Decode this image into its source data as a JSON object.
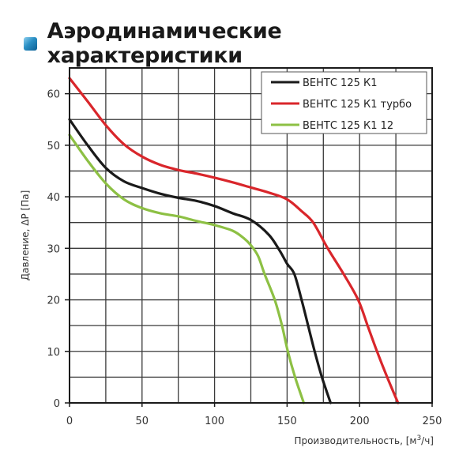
{
  "header": {
    "title": "Аэродинамические характеристики",
    "icon": "blue-square-icon"
  },
  "chart_data": {
    "type": "line",
    "title": "Аэродинамические характеристики",
    "xlabel": "Производительность, [м³/ч]",
    "ylabel": "Давление, ΔP [Па]",
    "xlim": [
      0,
      250
    ],
    "ylim": [
      0,
      65
    ],
    "x_ticks": [
      0,
      50,
      100,
      150,
      200,
      250
    ],
    "y_ticks": [
      0,
      10,
      20,
      30,
      40,
      50,
      60
    ],
    "grid": true,
    "grid_x_step": 25,
    "grid_y_step": 5,
    "legend_position": "upper right",
    "series": [
      {
        "name": "ВЕНТС 125 К1",
        "color": "#1a1a1a",
        "points": [
          [
            0,
            55
          ],
          [
            12.5,
            50
          ],
          [
            25,
            45.6
          ],
          [
            37.5,
            43
          ],
          [
            50,
            41.7
          ],
          [
            62.5,
            40.6
          ],
          [
            75,
            39.8
          ],
          [
            87.5,
            39.2
          ],
          [
            100,
            38.2
          ],
          [
            112.5,
            36.8
          ],
          [
            125,
            35.5
          ],
          [
            137.5,
            32.6
          ],
          [
            145,
            29.5
          ],
          [
            150,
            27
          ],
          [
            155,
            25
          ],
          [
            160,
            20
          ],
          [
            164.5,
            15
          ],
          [
            169,
            10
          ],
          [
            174,
            5
          ],
          [
            180,
            0
          ]
        ]
      },
      {
        "name": "ВЕНТС 125 К1 турбо",
        "color": "#d9262b",
        "points": [
          [
            0,
            63
          ],
          [
            12.5,
            58.5
          ],
          [
            25,
            53.9
          ],
          [
            37.5,
            50.2
          ],
          [
            50,
            47.8
          ],
          [
            62.5,
            46.2
          ],
          [
            75,
            45.2
          ],
          [
            87.5,
            44.5
          ],
          [
            100,
            43.7
          ],
          [
            112.5,
            42.8
          ],
          [
            125,
            41.8
          ],
          [
            137.5,
            40.8
          ],
          [
            150,
            39.5
          ],
          [
            160,
            37.2
          ],
          [
            168,
            35
          ],
          [
            178,
            30
          ],
          [
            189,
            25
          ],
          [
            199,
            20
          ],
          [
            205.5,
            15
          ],
          [
            212,
            10
          ],
          [
            219,
            5
          ],
          [
            226.5,
            0
          ]
        ]
      },
      {
        "name": "ВЕНТС 125 К1 12",
        "color": "#8dc044",
        "points": [
          [
            0,
            52
          ],
          [
            12.5,
            47
          ],
          [
            25,
            42.6
          ],
          [
            37.5,
            39.5
          ],
          [
            50,
            37.8
          ],
          [
            62.5,
            36.8
          ],
          [
            75,
            36.2
          ],
          [
            87.5,
            35.3
          ],
          [
            100,
            34.5
          ],
          [
            112.5,
            33.4
          ],
          [
            120,
            32
          ],
          [
            125,
            30.6
          ],
          [
            130,
            28.5
          ],
          [
            134.5,
            25
          ],
          [
            141.5,
            20
          ],
          [
            146.5,
            15
          ],
          [
            150.5,
            10
          ],
          [
            155.5,
            5
          ],
          [
            161.5,
            0
          ]
        ]
      }
    ]
  },
  "axes": {
    "y_label": "Давление, ΔP [Па]",
    "x_label_prefix": "Производительность, [м",
    "x_label_sup": "3",
    "x_label_suffix": "/ч]"
  },
  "legend": {
    "items": [
      {
        "label": "ВЕНТС 125 К1",
        "color": "#1a1a1a"
      },
      {
        "label": "ВЕНТС 125 К1 турбо",
        "color": "#d9262b"
      },
      {
        "label": "ВЕНТС 125 К1 12",
        "color": "#8dc044"
      }
    ]
  }
}
